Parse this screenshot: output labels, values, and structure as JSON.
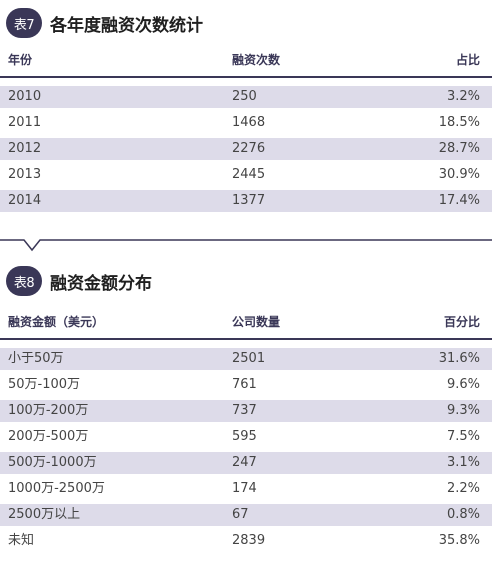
{
  "table7": {
    "badge": "表7",
    "title": "各年度融资次数统计",
    "headers": [
      "年份",
      "融资次数",
      "占比"
    ],
    "rows": [
      [
        "2010",
        "250",
        "3.2%"
      ],
      [
        "2011",
        "1468",
        "18.5%"
      ],
      [
        "2012",
        "2276",
        "28.7%"
      ],
      [
        "2013",
        "2445",
        "30.9%"
      ],
      [
        "2014",
        "1377",
        "17.4%"
      ]
    ]
  },
  "table8": {
    "badge": "表8",
    "title": "融资金额分布",
    "headers": [
      "融资金额（美元）",
      "公司数量",
      "百分比"
    ],
    "rows": [
      [
        "小于50万",
        "2501",
        "31.6%"
      ],
      [
        "50万-100万",
        "761",
        "9.6%"
      ],
      [
        "100万-200万",
        "737",
        "9.3%"
      ],
      [
        "200万-500万",
        "595",
        "7.5%"
      ],
      [
        "500万-1000万",
        "247",
        "3.1%"
      ],
      [
        "1000万-2500万",
        "174",
        "2.2%"
      ],
      [
        "2500万以上",
        "67",
        "0.8%"
      ],
      [
        "未知",
        "2839",
        "35.8%"
      ]
    ]
  },
  "colors": {
    "accent": "#3a3757",
    "row_shade": "#dddbe9"
  }
}
